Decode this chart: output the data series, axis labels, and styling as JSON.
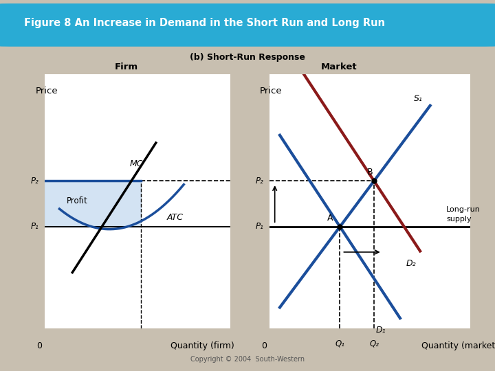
{
  "title": "Figure 8 An Increase in Demand in the Short Run and Long Run",
  "title_bg_color": "#29ABD4",
  "title_text_color": "#FFFFFF",
  "bg_color": "#C8BFB0",
  "panel_bg": "#FFFFFF",
  "subtitle": "(b) Short-Run Response",
  "firm_label": "Firm",
  "market_label": "Market",
  "price_label": "Price",
  "qty_firm_label": "Quantity (firm)",
  "qty_market_label": "Quantity (market)",
  "p1_label": "P₁",
  "p2_label": "P₂",
  "q1_label": "Q₁",
  "q2_label": "Q₂",
  "zero_label": "0",
  "mc_label": "MC",
  "atc_label": "ATC",
  "profit_label": "Profit",
  "s1_label": "S₁",
  "d1_label": "D₁",
  "d2_label": "D₂",
  "lr_supply_label": "Long-run\nsupply",
  "a_label": "A",
  "b_label": "B",
  "copyright": "Copyright © 2004  South-Western",
  "blue_color": "#1B4E9B",
  "dark_red_color": "#8B1A1A",
  "black": "#000000",
  "profit_fill": "#C8DCF0",
  "p1": 0.4,
  "p2": 0.58,
  "q1_mkt": 0.35,
  "q2_mkt": 0.52
}
